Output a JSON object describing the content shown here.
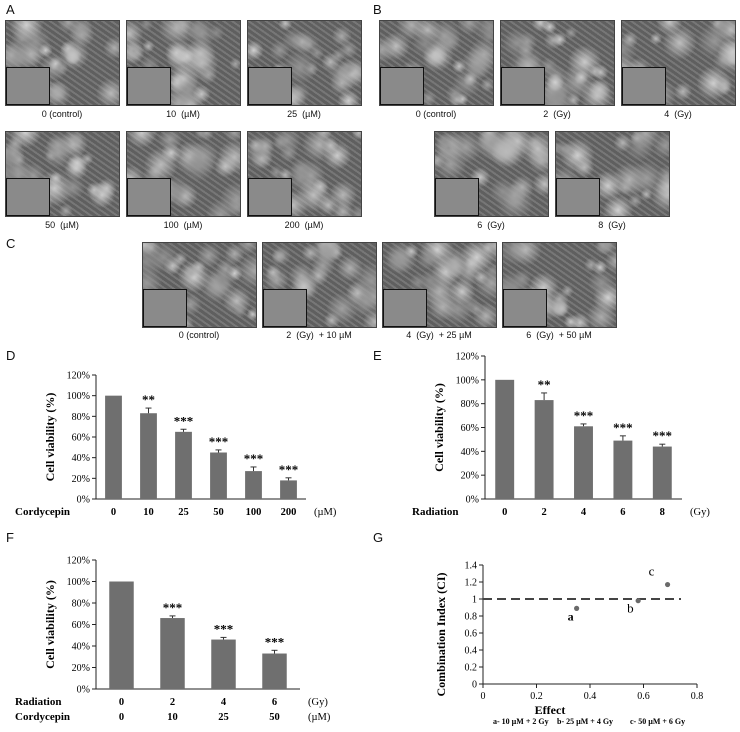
{
  "panels": {
    "A": {
      "letter": "A",
      "images": [
        {
          "dose": "0",
          "unit": "(control)"
        },
        {
          "dose": "10",
          "unit": "(µM)"
        },
        {
          "dose": "25",
          "unit": "(µM)"
        },
        {
          "dose": "50",
          "unit": "(µM)"
        },
        {
          "dose": "100",
          "unit": "(µM)"
        },
        {
          "dose": "200",
          "unit": "(µM)"
        }
      ]
    },
    "B": {
      "letter": "B",
      "images": [
        {
          "dose": "0",
          "unit": "(control)"
        },
        {
          "dose": "2",
          "unit": "(Gy)"
        },
        {
          "dose": "4",
          "unit": "(Gy)"
        },
        {
          "dose": "6",
          "unit": "(Gy)"
        },
        {
          "dose": "8",
          "unit": "(Gy)"
        }
      ]
    },
    "C": {
      "letter": "C",
      "images": [
        {
          "dose": "0",
          "unit": "(control)",
          "extra": ""
        },
        {
          "dose": "2",
          "unit": "(Gy)",
          "extra": "+ 10 µM"
        },
        {
          "dose": "4",
          "unit": "(Gy)",
          "extra": "+ 25 µM"
        },
        {
          "dose": "6",
          "unit": "(Gy)",
          "extra": "+ 50 µM"
        }
      ]
    },
    "D": {
      "letter": "D"
    },
    "E": {
      "letter": "E"
    },
    "F": {
      "letter": "F"
    },
    "G": {
      "letter": "G"
    }
  },
  "chart_data": [
    {
      "id": "D",
      "type": "bar",
      "ylabel": "Cell viability (%)",
      "yticks": [
        "0%",
        "20%",
        "40%",
        "60%",
        "80%",
        "100%",
        "120%"
      ],
      "ylim": [
        0,
        120
      ],
      "row_labels": [
        {
          "label": "Cordycepin",
          "values": [
            "0",
            "10",
            "25",
            "50",
            "100",
            "200"
          ],
          "unit": "(µM)"
        }
      ],
      "values": [
        100,
        83,
        65,
        45,
        27,
        18
      ],
      "errors": [
        0,
        5,
        2.5,
        2.5,
        4,
        2.5
      ],
      "significance": [
        "",
        "**",
        "***",
        "***",
        "***",
        "***"
      ]
    },
    {
      "id": "E",
      "type": "bar",
      "ylabel": "Cell viability (%)",
      "yticks": [
        "0%",
        "20%",
        "40%",
        "60%",
        "80%",
        "100%",
        "120%"
      ],
      "ylim": [
        0,
        120
      ],
      "row_labels": [
        {
          "label": "Radiation",
          "values": [
            "0",
            "2",
            "4",
            "6",
            "8"
          ],
          "unit": "(Gy)"
        }
      ],
      "values": [
        100,
        83,
        61,
        49,
        44
      ],
      "errors": [
        0,
        6,
        2,
        4,
        2
      ],
      "significance": [
        "",
        "**",
        "***",
        "***",
        "***"
      ]
    },
    {
      "id": "F",
      "type": "bar",
      "ylabel": "Cell viability (%)",
      "yticks": [
        "0%",
        "20%",
        "40%",
        "60%",
        "80%",
        "100%",
        "120%"
      ],
      "ylim": [
        0,
        120
      ],
      "row_labels": [
        {
          "label": "Radiation",
          "values": [
            "0",
            "2",
            "4",
            "6"
          ],
          "unit": "(Gy)"
        },
        {
          "label": "Cordycepin",
          "values": [
            "0",
            "10",
            "25",
            "50"
          ],
          "unit": "(µM)"
        }
      ],
      "values": [
        100,
        66,
        46,
        33
      ],
      "errors": [
        0,
        2,
        2,
        3
      ],
      "significance": [
        "",
        "***",
        "***",
        "***"
      ]
    },
    {
      "id": "G",
      "type": "scatter",
      "xlabel": "Effect",
      "ylabel": "Combination Index (CI)",
      "xticks": [
        "0",
        "0.2",
        "0.4",
        "0.6",
        "0.8"
      ],
      "yticks": [
        "0",
        "0.2",
        "0.4",
        "0.6",
        "0.8",
        "1",
        "1.2",
        "1.4"
      ],
      "xlim": [
        0,
        0.8
      ],
      "ylim": [
        0,
        1.4
      ],
      "reference_line": 1,
      "points": [
        {
          "label": "a",
          "x": 0.35,
          "y": 0.89
        },
        {
          "label": "b",
          "x": 0.58,
          "y": 0.98
        },
        {
          "label": "c",
          "x": 0.69,
          "y": 1.17
        }
      ],
      "legend": [
        "a- 10 µM + 2 Gy",
        "b- 25 µM + 4 Gy",
        "c- 50 µM + 6 Gy"
      ]
    }
  ]
}
